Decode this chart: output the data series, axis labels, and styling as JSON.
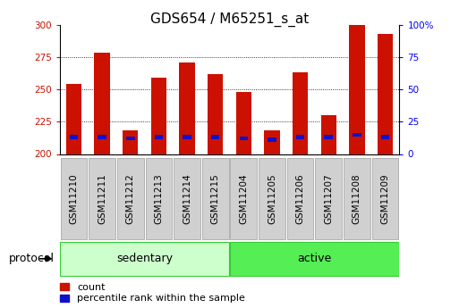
{
  "title": "GDS654 / M65251_s_at",
  "samples": [
    "GSM11210",
    "GSM11211",
    "GSM11212",
    "GSM11213",
    "GSM11214",
    "GSM11215",
    "GSM11204",
    "GSM11205",
    "GSM11206",
    "GSM11207",
    "GSM11208",
    "GSM11209"
  ],
  "red_values": [
    254,
    278,
    218,
    259,
    271,
    262,
    248,
    218,
    263,
    230,
    300,
    293
  ],
  "blue_values": [
    213,
    213,
    212,
    213,
    213,
    213,
    212,
    211,
    213,
    213,
    215,
    213
  ],
  "groups": [
    {
      "label": "sedentary",
      "start": 0,
      "end": 6,
      "color": "#ccffcc"
    },
    {
      "label": "active",
      "start": 6,
      "end": 12,
      "color": "#55ee55"
    }
  ],
  "protocol_label": "protocol",
  "ymin": 200,
  "ymax": 300,
  "yticks_left": [
    200,
    225,
    250,
    275,
    300
  ],
  "yticks_right": [
    0,
    25,
    50,
    75,
    100
  ],
  "bar_color_red": "#cc1100",
  "bar_color_blue": "#1111cc",
  "bar_width": 0.55,
  "legend_count": "count",
  "legend_percentile": "percentile rank within the sample",
  "title_fontsize": 11,
  "tick_fontsize": 7.5,
  "xlabel_gray": "#cccccc",
  "cell_edge": "#aaaaaa"
}
